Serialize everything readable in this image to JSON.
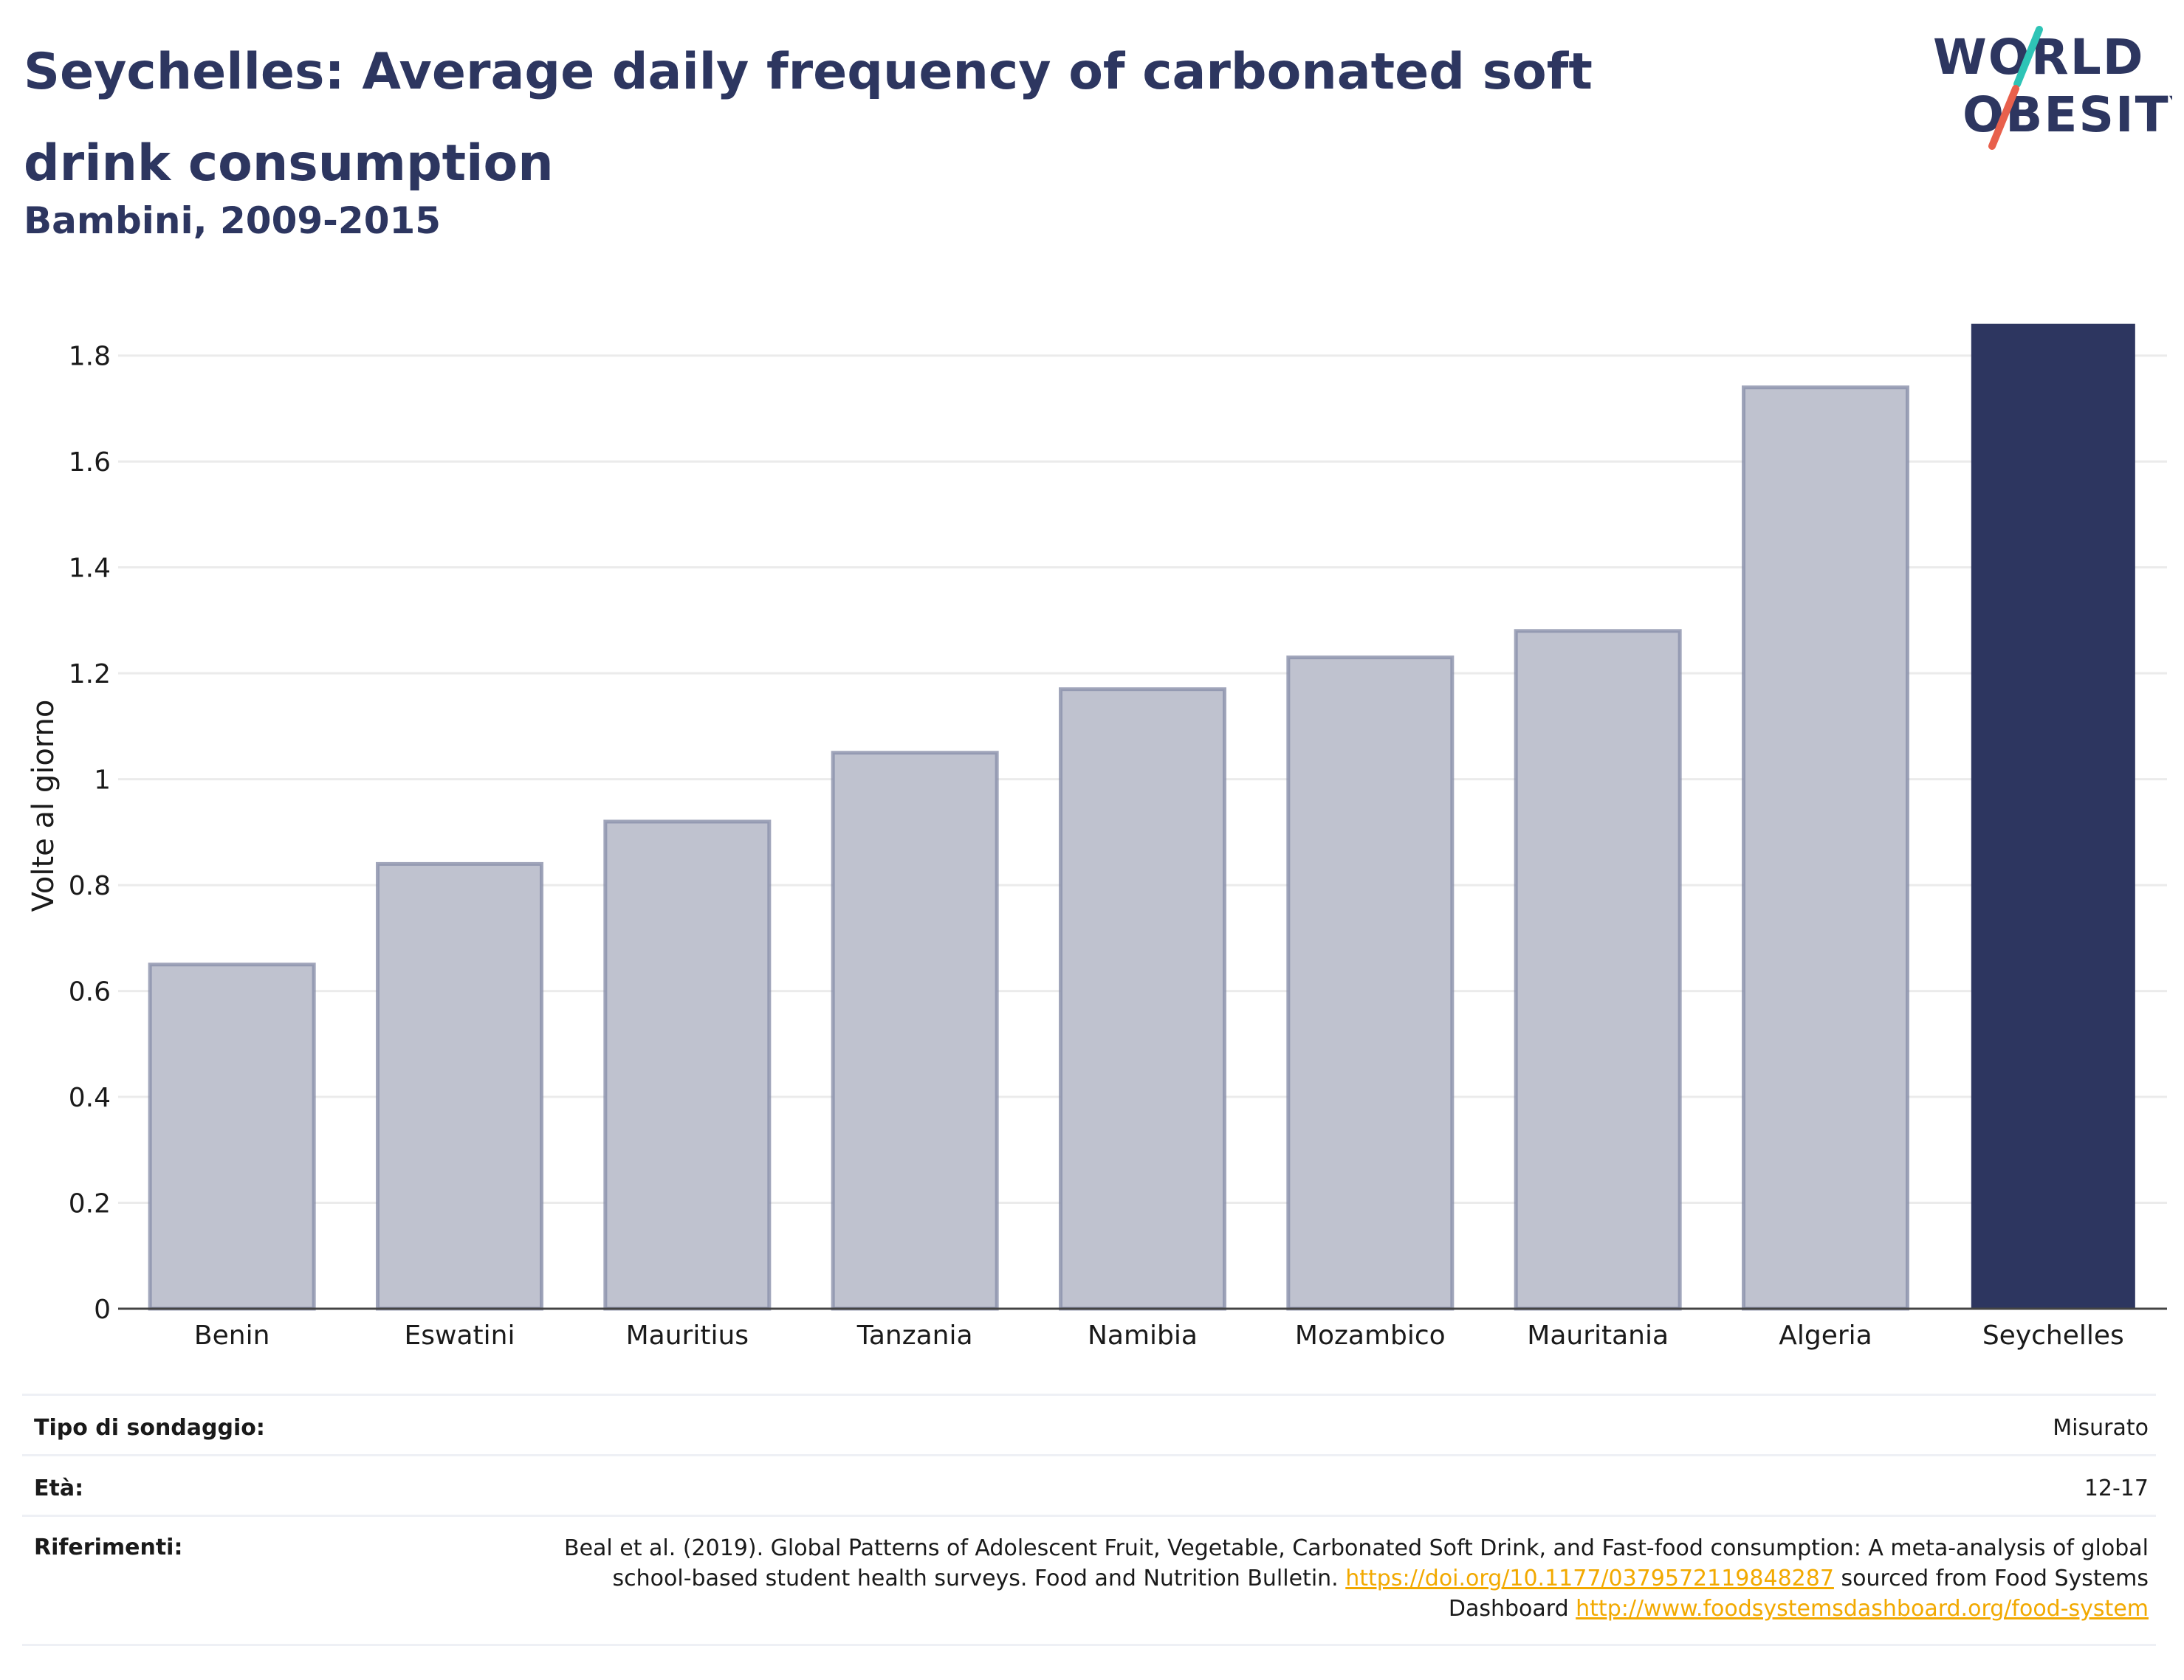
{
  "header": {
    "title": "Seychelles: Average daily frequency of carbonated soft drink consumption",
    "subtitle": "Bambini, 2009-2015"
  },
  "logo": {
    "line1": "WORLD",
    "line2": "OBESITY",
    "slash_colors": [
      "#2ec4b6",
      "#e8604c"
    ]
  },
  "colors": {
    "highlight_bar": "#2d3660",
    "other_bar_fill": "#bfc2cf",
    "other_bar_stroke": "#8a90aa",
    "grid": "#ebebeb",
    "link": "#f2a900"
  },
  "chart_data": {
    "type": "bar",
    "categories": [
      "Benin",
      "Eswatini",
      "Mauritius",
      "Tanzania",
      "Namibia",
      "Mozambico",
      "Mauritania",
      "Algeria",
      "Seychelles"
    ],
    "values": [
      0.65,
      0.84,
      0.92,
      1.05,
      1.17,
      1.23,
      1.28,
      1.74,
      1.86
    ],
    "highlight": "Seychelles",
    "ylabel": "Volte al giorno",
    "xlabel": "",
    "ylim": [
      0,
      1.9
    ],
    "yticks": [
      0,
      0.2,
      0.4,
      0.6,
      0.8,
      1,
      1.2,
      1.4,
      1.6,
      1.8
    ],
    "ytick_labels": [
      "0",
      "0.2",
      "0.4",
      "0.6",
      "0.8",
      "1",
      "1.2",
      "1.4",
      "1.6",
      "1.8"
    ],
    "grid": true
  },
  "info_table": {
    "survey_type_label": "Tipo di sondaggio:",
    "survey_type_value": "Misurato",
    "age_label": "Età:",
    "age_value": "12-17",
    "references_label": "Riferimenti:",
    "references_text_1": "Beal et al. (2019). Global Patterns of Adolescent Fruit, Vegetable, Carbonated Soft Drink, and Fast-food consumption: A meta-analysis of global school-based student health surveys. Food and Nutrition Bulletin. ",
    "references_link_1": "https://doi.org/10.1177/0379572119848287",
    "references_text_2": " sourced from Food Systems Dashboard ",
    "references_link_2": "http://www.foodsystemsdashboard.org/food-system"
  }
}
